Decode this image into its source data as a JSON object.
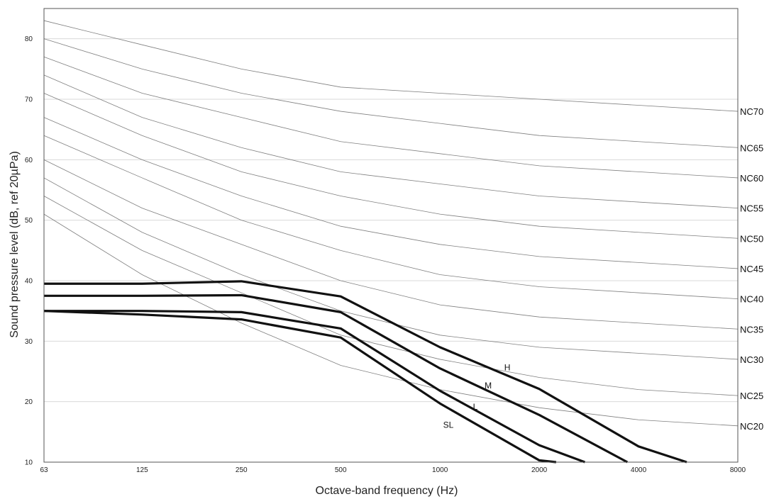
{
  "chart_data": {
    "type": "line",
    "xlabel": "Octave-band frequency (Hz)",
    "ylabel": "Sound pressure level (dB, ref 20µPa)",
    "x": [
      63,
      125,
      250,
      500,
      1000,
      2000,
      4000,
      8000
    ],
    "x_tick_labels": [
      "63",
      "125",
      "250",
      "500",
      "1000",
      "2000",
      "4000",
      "8000"
    ],
    "x_scale": "log2 (octave bands)",
    "ylim": [
      10,
      85
    ],
    "y_ticks": [
      10,
      20,
      30,
      40,
      50,
      60,
      70,
      80
    ],
    "y_tick_labels": [
      "10",
      "20",
      "30",
      "40",
      "50",
      "60",
      "70",
      "80"
    ],
    "grid": "horizontal",
    "nc_curves": [
      {
        "name": "NC70",
        "values": [
          83,
          79,
          75,
          72,
          71,
          70,
          69,
          68
        ]
      },
      {
        "name": "NC65",
        "values": [
          80,
          75,
          71,
          68,
          66,
          64,
          63,
          62
        ]
      },
      {
        "name": "NC60",
        "values": [
          77,
          71,
          67,
          63,
          61,
          59,
          58,
          57
        ]
      },
      {
        "name": "NC55",
        "values": [
          74,
          67,
          62,
          58,
          56,
          54,
          53,
          52
        ]
      },
      {
        "name": "NC50",
        "values": [
          71,
          64,
          58,
          54,
          51,
          49,
          48,
          47
        ]
      },
      {
        "name": "NC45",
        "values": [
          67,
          60,
          54,
          49,
          46,
          44,
          43,
          42
        ]
      },
      {
        "name": "NC40",
        "values": [
          64,
          57,
          50,
          45,
          41,
          39,
          38,
          37
        ]
      },
      {
        "name": "NC35",
        "values": [
          60,
          52,
          46,
          40,
          36,
          34,
          33,
          32
        ]
      },
      {
        "name": "NC30",
        "values": [
          57,
          48,
          41,
          35,
          31,
          29,
          28,
          27
        ]
      },
      {
        "name": "NC25",
        "values": [
          54,
          45,
          38,
          31,
          27,
          24,
          22,
          21
        ]
      },
      {
        "name": "NC20",
        "values": [
          51,
          41,
          33,
          26,
          22,
          19,
          17,
          16
        ]
      }
    ],
    "series": [
      {
        "name": "H",
        "x": [
          63,
          125,
          250,
          500,
          1000,
          2000,
          4000,
          5600
        ],
        "values": [
          39.5,
          39.5,
          39.9,
          37.4,
          29.0,
          22.1,
          12.6,
          10.0
        ]
      },
      {
        "name": "M",
        "x": [
          63,
          125,
          250,
          500,
          1000,
          2000,
          3700
        ],
        "values": [
          37.5,
          37.5,
          37.6,
          34.8,
          25.5,
          17.8,
          10.0
        ]
      },
      {
        "name": "L",
        "x": [
          63,
          125,
          250,
          500,
          1000,
          2000,
          2750
        ],
        "values": [
          35.0,
          35.0,
          34.8,
          32.1,
          21.8,
          12.8,
          10.0
        ]
      },
      {
        "name": "SL",
        "x": [
          63,
          125,
          250,
          500,
          1000,
          2000,
          2250
        ],
        "values": [
          35.0,
          34.4,
          33.6,
          30.6,
          19.7,
          10.3,
          10.0
        ]
      }
    ],
    "series_label_x": {
      "H": 1600,
      "M": 1400,
      "L": 1280,
      "SL": 1060
    },
    "series_label_y": {
      "H": 25.2,
      "M": 22.2,
      "L": 18.7,
      "SL": 15.7
    }
  },
  "style": {
    "background": "#ffffff",
    "grid_color": "#d9d9d9",
    "nc_line_color": "#7f7f7f",
    "series_color": "#111111",
    "axis_color": "#555555"
  }
}
